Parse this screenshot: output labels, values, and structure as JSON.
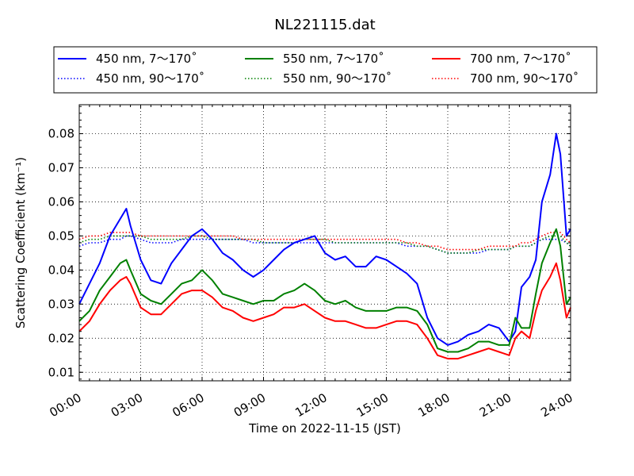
{
  "chart_data": {
    "type": "line",
    "title": "NL221115.dat",
    "xlabel": "Time on 2022-11-15 (JST)",
    "ylabel": "Scattering Coefficient (km⁻¹)",
    "xlim": [
      0,
      24
    ],
    "ylim": [
      0.0075,
      0.0885
    ],
    "x_ticks": [
      0,
      3,
      6,
      9,
      12,
      15,
      18,
      21,
      24
    ],
    "x_tick_labels": [
      "00:00",
      "03:00",
      "06:00",
      "09:00",
      "12:00",
      "15:00",
      "18:00",
      "21:00",
      "24:00"
    ],
    "y_ticks": [
      0.01,
      0.02,
      0.03,
      0.04,
      0.05,
      0.06,
      0.07,
      0.08
    ],
    "y_tick_labels": [
      "0.01",
      "0.02",
      "0.03",
      "0.04",
      "0.05",
      "0.06",
      "0.07",
      "0.08"
    ],
    "grid": true,
    "legend_placement": "top",
    "x": [
      0,
      0.5,
      1,
      1.5,
      2,
      2.3,
      2.5,
      3,
      3.5,
      4,
      4.5,
      5,
      5.5,
      6,
      6.5,
      7,
      7.5,
      8,
      8.5,
      9,
      9.5,
      10,
      10.5,
      11,
      11.5,
      12,
      12.5,
      13,
      13.5,
      14,
      14.5,
      15,
      15.5,
      16,
      16.5,
      17,
      17.5,
      18,
      18.5,
      19,
      19.5,
      20,
      20.5,
      21,
      21.3,
      21.6,
      22,
      22.3,
      22.6,
      23,
      23.3,
      23.5,
      23.8,
      24
    ],
    "series": [
      {
        "name": "450 nm, 7～170˚",
        "color": "#0000ff",
        "style": "solid",
        "values": [
          0.03,
          0.036,
          0.042,
          0.05,
          0.055,
          0.058,
          0.053,
          0.043,
          0.037,
          0.036,
          0.042,
          0.046,
          0.05,
          0.052,
          0.049,
          0.045,
          0.043,
          0.04,
          0.038,
          0.04,
          0.043,
          0.046,
          0.048,
          0.049,
          0.05,
          0.045,
          0.043,
          0.044,
          0.041,
          0.041,
          0.044,
          0.043,
          0.041,
          0.039,
          0.036,
          0.026,
          0.02,
          0.018,
          0.019,
          0.021,
          0.022,
          0.024,
          0.023,
          0.019,
          0.022,
          0.035,
          0.038,
          0.043,
          0.06,
          0.068,
          0.08,
          0.074,
          0.05,
          0.052
        ]
      },
      {
        "name": "450 nm, 90～170˚",
        "color": "#0000ff",
        "style": "dotted",
        "values": [
          0.047,
          0.048,
          0.048,
          0.049,
          0.049,
          0.05,
          0.05,
          0.049,
          0.048,
          0.048,
          0.048,
          0.049,
          0.049,
          0.049,
          0.049,
          0.049,
          0.049,
          0.049,
          0.048,
          0.048,
          0.048,
          0.048,
          0.048,
          0.048,
          0.048,
          0.048,
          0.048,
          0.048,
          0.048,
          0.048,
          0.048,
          0.048,
          0.048,
          0.047,
          0.047,
          0.047,
          0.046,
          0.045,
          0.045,
          0.045,
          0.045,
          0.046,
          0.046,
          0.046,
          0.047,
          0.047,
          0.047,
          0.048,
          0.049,
          0.049,
          0.049,
          0.049,
          0.048,
          0.047
        ]
      },
      {
        "name": "550 nm, 7～170˚",
        "color": "#008000",
        "style": "solid",
        "values": [
          0.025,
          0.028,
          0.034,
          0.038,
          0.042,
          0.043,
          0.04,
          0.033,
          0.031,
          0.03,
          0.033,
          0.036,
          0.037,
          0.04,
          0.037,
          0.033,
          0.032,
          0.031,
          0.03,
          0.031,
          0.031,
          0.033,
          0.034,
          0.036,
          0.034,
          0.031,
          0.03,
          0.031,
          0.029,
          0.028,
          0.028,
          0.028,
          0.029,
          0.029,
          0.028,
          0.024,
          0.017,
          0.016,
          0.016,
          0.017,
          0.019,
          0.019,
          0.018,
          0.018,
          0.026,
          0.023,
          0.023,
          0.033,
          0.042,
          0.048,
          0.052,
          0.047,
          0.03,
          0.032
        ]
      },
      {
        "name": "550 nm, 90～170˚",
        "color": "#008000",
        "style": "dotted",
        "values": [
          0.048,
          0.049,
          0.049,
          0.05,
          0.05,
          0.05,
          0.05,
          0.05,
          0.049,
          0.049,
          0.049,
          0.049,
          0.05,
          0.05,
          0.049,
          0.049,
          0.049,
          0.049,
          0.049,
          0.048,
          0.048,
          0.048,
          0.048,
          0.049,
          0.049,
          0.049,
          0.048,
          0.048,
          0.048,
          0.048,
          0.048,
          0.048,
          0.048,
          0.048,
          0.047,
          0.047,
          0.046,
          0.045,
          0.045,
          0.045,
          0.046,
          0.046,
          0.046,
          0.046,
          0.047,
          0.047,
          0.047,
          0.048,
          0.049,
          0.05,
          0.05,
          0.05,
          0.048,
          0.047
        ]
      },
      {
        "name": "700 nm, 7～170˚",
        "color": "#ff0000",
        "style": "solid",
        "values": [
          0.022,
          0.025,
          0.03,
          0.034,
          0.037,
          0.038,
          0.036,
          0.029,
          0.027,
          0.027,
          0.03,
          0.033,
          0.034,
          0.034,
          0.032,
          0.029,
          0.028,
          0.026,
          0.025,
          0.026,
          0.027,
          0.029,
          0.029,
          0.03,
          0.028,
          0.026,
          0.025,
          0.025,
          0.024,
          0.023,
          0.023,
          0.024,
          0.025,
          0.025,
          0.024,
          0.02,
          0.015,
          0.014,
          0.014,
          0.015,
          0.016,
          0.017,
          0.016,
          0.015,
          0.02,
          0.022,
          0.02,
          0.028,
          0.034,
          0.038,
          0.042,
          0.037,
          0.026,
          0.029
        ]
      },
      {
        "name": "700 nm, 90～170˚",
        "color": "#ff0000",
        "style": "dotted",
        "values": [
          0.049,
          0.05,
          0.05,
          0.051,
          0.051,
          0.051,
          0.051,
          0.05,
          0.05,
          0.05,
          0.05,
          0.05,
          0.05,
          0.05,
          0.05,
          0.05,
          0.05,
          0.049,
          0.049,
          0.049,
          0.049,
          0.049,
          0.049,
          0.049,
          0.049,
          0.049,
          0.049,
          0.049,
          0.049,
          0.049,
          0.049,
          0.049,
          0.049,
          0.048,
          0.048,
          0.047,
          0.047,
          0.046,
          0.046,
          0.046,
          0.046,
          0.047,
          0.047,
          0.047,
          0.047,
          0.048,
          0.048,
          0.049,
          0.05,
          0.051,
          0.051,
          0.051,
          0.049,
          0.048
        ]
      }
    ]
  }
}
